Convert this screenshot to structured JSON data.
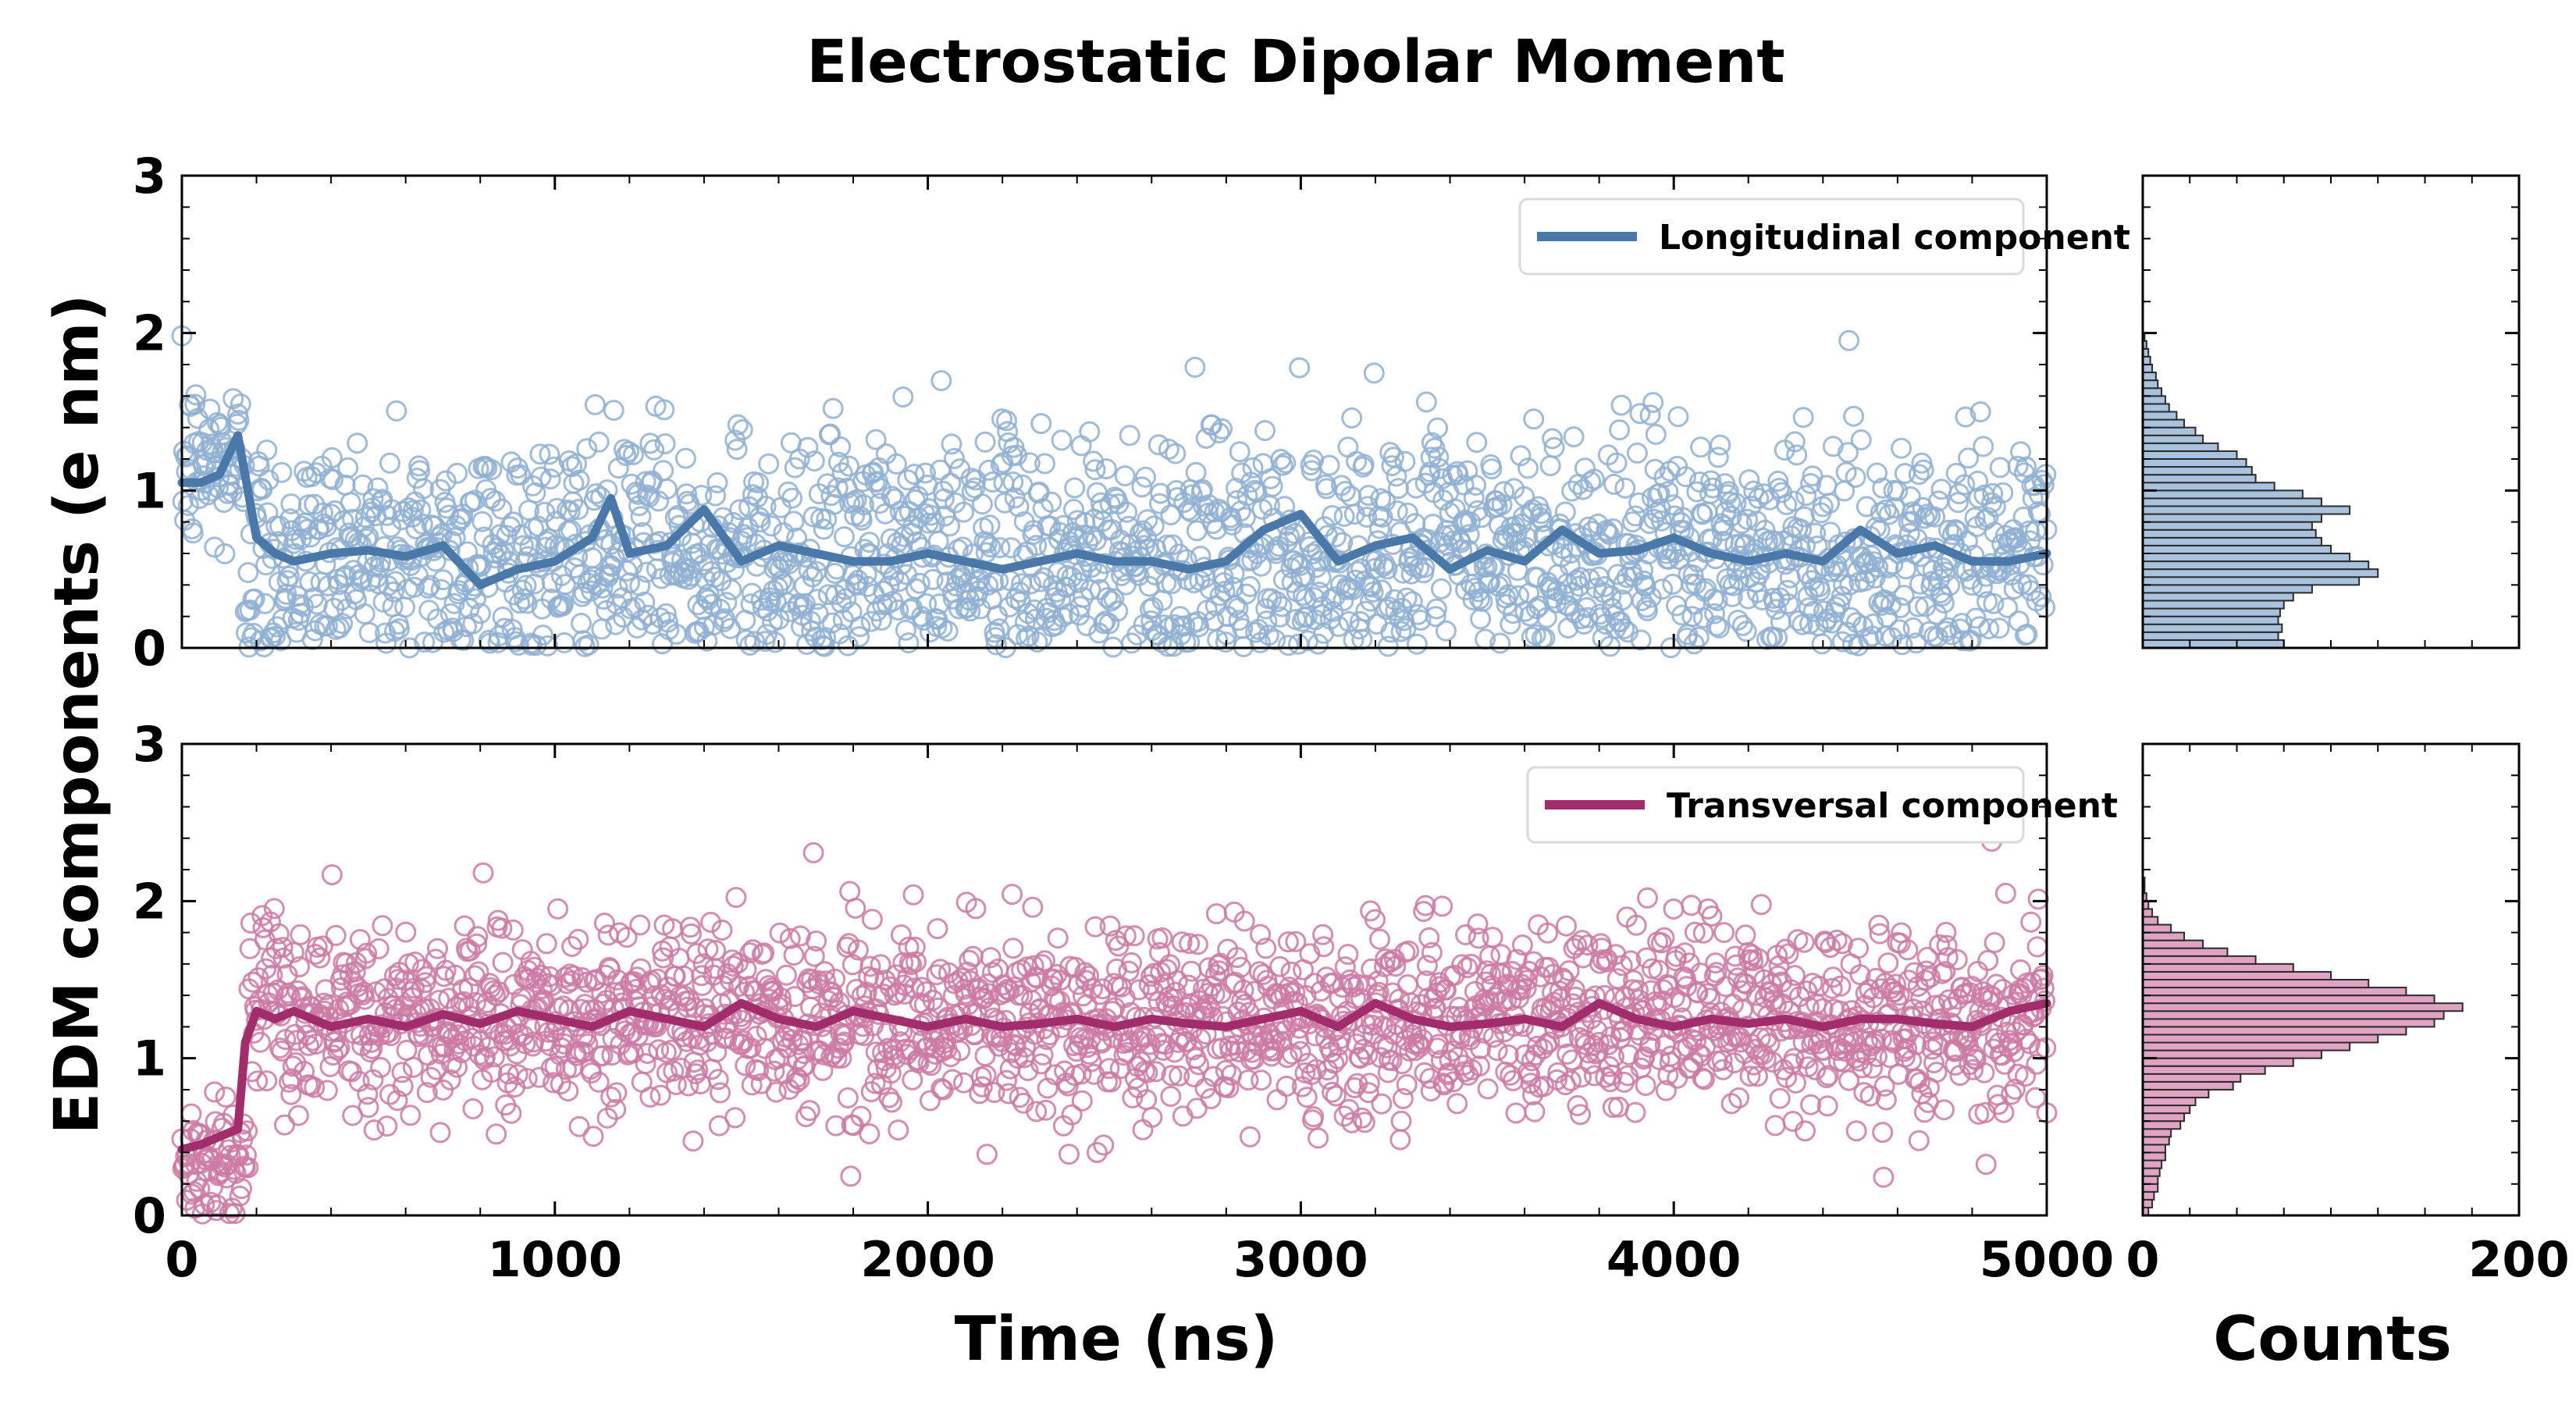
{
  "chart_data": {
    "type": "scatter",
    "title": "Electrostatic Dipolar Moment",
    "ylabel": "EDM components (e nm)",
    "xlabel": "Time (ns)",
    "hist_xlabel": "Counts",
    "xlim": [
      0,
      5000
    ],
    "ylim": [
      0,
      3
    ],
    "hist_xlim": [
      0,
      200
    ],
    "x_ticks": [
      "0",
      "1000",
      "2000",
      "3000",
      "4000",
      "5000"
    ],
    "y_ticks": [
      "0",
      "1",
      "2",
      "3"
    ],
    "hist_ticks": [
      "0",
      "200"
    ],
    "grid": false,
    "legend_placement": "top-right",
    "panels": [
      {
        "id": "longitudinal",
        "legend": "Longitudinal component",
        "color": "#4a78a8",
        "marker_color": "#8fb0d2",
        "hist_fill": "#a9c3de",
        "raw": {
          "description_free": true,
          "x_start": 0,
          "x_end": 5000,
          "n_points": 2000,
          "mean": 0.58,
          "std": 0.4,
          "early_mean": 1.15,
          "early_until": 170
        },
        "smoothed": {
          "x": [
            0,
            50,
            100,
            150,
            200,
            250,
            300,
            400,
            500,
            600,
            700,
            800,
            900,
            1000,
            1100,
            1150,
            1200,
            1300,
            1400,
            1500,
            1600,
            1700,
            1800,
            1900,
            2000,
            2100,
            2200,
            2300,
            2400,
            2500,
            2600,
            2700,
            2800,
            2900,
            3000,
            3100,
            3200,
            3300,
            3400,
            3500,
            3600,
            3700,
            3800,
            3900,
            4000,
            4100,
            4200,
            4300,
            4400,
            4500,
            4600,
            4700,
            4800,
            4900,
            5000
          ],
          "y": [
            1.05,
            1.05,
            1.1,
            1.35,
            0.7,
            0.6,
            0.55,
            0.6,
            0.62,
            0.58,
            0.65,
            0.4,
            0.5,
            0.55,
            0.7,
            0.95,
            0.6,
            0.65,
            0.88,
            0.55,
            0.65,
            0.6,
            0.55,
            0.55,
            0.6,
            0.55,
            0.5,
            0.55,
            0.6,
            0.55,
            0.55,
            0.5,
            0.55,
            0.75,
            0.85,
            0.55,
            0.65,
            0.7,
            0.5,
            0.62,
            0.55,
            0.75,
            0.6,
            0.62,
            0.7,
            0.6,
            0.55,
            0.6,
            0.55,
            0.75,
            0.6,
            0.65,
            0.55,
            0.55,
            0.6
          ]
        },
        "histogram": {
          "bin_edges": [
            0.0,
            0.05,
            0.1,
            0.15,
            0.2,
            0.25,
            0.3,
            0.35,
            0.4,
            0.45,
            0.5,
            0.55,
            0.6,
            0.65,
            0.7,
            0.75,
            0.8,
            0.85,
            0.9,
            0.95,
            1.0,
            1.05,
            1.1,
            1.15,
            1.2,
            1.25,
            1.3,
            1.35,
            1.4,
            1.45,
            1.5,
            1.55,
            1.6,
            1.65,
            1.7,
            1.75,
            1.8,
            1.85,
            1.9,
            1.95,
            2.0
          ],
          "counts": [
            75,
            72,
            74,
            72,
            73,
            75,
            80,
            90,
            115,
            125,
            120,
            110,
            100,
            95,
            92,
            90,
            95,
            110,
            95,
            85,
            70,
            60,
            58,
            55,
            50,
            40,
            32,
            28,
            22,
            18,
            14,
            12,
            10,
            8,
            7,
            5,
            4,
            3,
            2,
            1
          ]
        }
      },
      {
        "id": "transversal",
        "legend": "Transversal component",
        "color": "#a22d6c",
        "marker_color": "#cc7aa5",
        "hist_fill": "#e0a3c4",
        "raw": {
          "x_start": 0,
          "x_end": 5000,
          "n_points": 2000,
          "mean": 1.25,
          "std": 0.3,
          "early_mean": 0.35,
          "early_until": 180
        },
        "smoothed": {
          "x": [
            0,
            50,
            100,
            150,
            170,
            200,
            250,
            300,
            400,
            500,
            600,
            700,
            800,
            900,
            1000,
            1100,
            1200,
            1300,
            1400,
            1500,
            1600,
            1700,
            1800,
            1900,
            2000,
            2100,
            2200,
            2300,
            2400,
            2500,
            2600,
            2700,
            2800,
            2900,
            3000,
            3100,
            3200,
            3300,
            3400,
            3500,
            3600,
            3700,
            3800,
            3900,
            4000,
            4100,
            4200,
            4300,
            4400,
            4500,
            4600,
            4700,
            4800,
            4900,
            5000
          ],
          "y": [
            0.42,
            0.45,
            0.5,
            0.55,
            1.1,
            1.3,
            1.25,
            1.3,
            1.2,
            1.25,
            1.2,
            1.28,
            1.22,
            1.3,
            1.25,
            1.2,
            1.3,
            1.25,
            1.2,
            1.35,
            1.25,
            1.2,
            1.3,
            1.25,
            1.2,
            1.25,
            1.2,
            1.22,
            1.25,
            1.2,
            1.25,
            1.22,
            1.2,
            1.25,
            1.3,
            1.2,
            1.35,
            1.25,
            1.2,
            1.22,
            1.25,
            1.2,
            1.35,
            1.25,
            1.2,
            1.25,
            1.22,
            1.25,
            1.2,
            1.25,
            1.25,
            1.22,
            1.2,
            1.3,
            1.35
          ]
        },
        "histogram": {
          "bin_edges": [
            0.0,
            0.05,
            0.1,
            0.15,
            0.2,
            0.25,
            0.3,
            0.35,
            0.4,
            0.45,
            0.5,
            0.55,
            0.6,
            0.65,
            0.7,
            0.75,
            0.8,
            0.85,
            0.9,
            0.95,
            1.0,
            1.05,
            1.1,
            1.15,
            1.2,
            1.25,
            1.3,
            1.35,
            1.4,
            1.45,
            1.5,
            1.55,
            1.6,
            1.65,
            1.7,
            1.75,
            1.8,
            1.85,
            1.9,
            1.95,
            2.0,
            2.05,
            2.1,
            2.15,
            2.2,
            2.25,
            2.3
          ],
          "counts": [
            3,
            5,
            6,
            8,
            8,
            9,
            10,
            12,
            12,
            14,
            15,
            20,
            22,
            25,
            28,
            35,
            48,
            52,
            65,
            80,
            95,
            110,
            125,
            140,
            155,
            160,
            170,
            155,
            140,
            120,
            100,
            80,
            60,
            45,
            32,
            22,
            15,
            8,
            5,
            3,
            2,
            1,
            1,
            0,
            0,
            0
          ]
        }
      }
    ]
  }
}
